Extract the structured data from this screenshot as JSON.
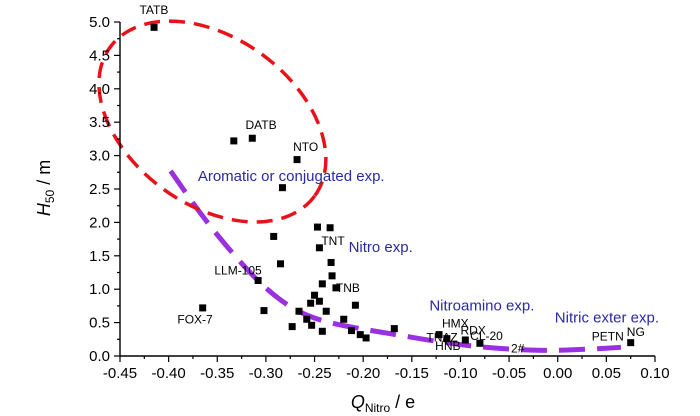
{
  "chart_data": {
    "type": "scatter",
    "xlabel_main": "Q",
    "xlabel_sub": "Nitro",
    "xlabel_unit": " / e",
    "ylabel_main": "H",
    "ylabel_sub": "50",
    "ylabel_unit": " / m",
    "xlim": [
      -0.45,
      0.1
    ],
    "ylim": [
      0.0,
      5.0
    ],
    "x_ticks": [
      "-0.45",
      "-0.40",
      "-0.35",
      "-0.30",
      "-0.25",
      "-0.20",
      "-0.15",
      "-0.10",
      "-0.05",
      "0.00",
      "0.05",
      "0.10"
    ],
    "y_ticks": [
      "0.0",
      "0.5",
      "1.0",
      "1.5",
      "2.0",
      "2.5",
      "3.0",
      "3.5",
      "4.0",
      "4.5",
      "5.0"
    ],
    "points": [
      {
        "x": -0.415,
        "y": 4.92
      },
      {
        "x": -0.333,
        "y": 3.22
      },
      {
        "x": -0.314,
        "y": 3.26
      },
      {
        "x": -0.268,
        "y": 2.94
      },
      {
        "x": -0.283,
        "y": 2.52
      },
      {
        "x": -0.247,
        "y": 1.93
      },
      {
        "x": -0.234,
        "y": 1.92
      },
      {
        "x": -0.292,
        "y": 1.79
      },
      {
        "x": -0.245,
        "y": 1.62
      },
      {
        "x": -0.233,
        "y": 1.4
      },
      {
        "x": -0.285,
        "y": 1.38
      },
      {
        "x": -0.232,
        "y": 1.2
      },
      {
        "x": -0.308,
        "y": 1.13
      },
      {
        "x": -0.242,
        "y": 1.08
      },
      {
        "x": -0.228,
        "y": 1.02
      },
      {
        "x": -0.25,
        "y": 0.91
      },
      {
        "x": -0.245,
        "y": 0.82
      },
      {
        "x": -0.254,
        "y": 0.79
      },
      {
        "x": -0.208,
        "y": 0.76
      },
      {
        "x": -0.365,
        "y": 0.72
      },
      {
        "x": -0.302,
        "y": 0.68
      },
      {
        "x": -0.238,
        "y": 0.67
      },
      {
        "x": -0.266,
        "y": 0.67
      },
      {
        "x": -0.258,
        "y": 0.55
      },
      {
        "x": -0.22,
        "y": 0.55
      },
      {
        "x": -0.253,
        "y": 0.46
      },
      {
        "x": -0.273,
        "y": 0.44
      },
      {
        "x": -0.168,
        "y": 0.41
      },
      {
        "x": -0.212,
        "y": 0.38
      },
      {
        "x": -0.242,
        "y": 0.37
      },
      {
        "x": -0.203,
        "y": 0.32
      },
      {
        "x": -0.197,
        "y": 0.27
      },
      {
        "x": -0.122,
        "y": 0.32
      },
      {
        "x": -0.114,
        "y": 0.26
      },
      {
        "x": -0.095,
        "y": 0.24
      },
      {
        "x": -0.08,
        "y": 0.19
      },
      {
        "x": 0.075,
        "y": 0.2
      }
    ],
    "labels": [
      {
        "text": "TATB",
        "x": -0.43,
        "y": 5.12
      },
      {
        "text": "DATB",
        "x": -0.321,
        "y": 3.4
      },
      {
        "text": "NTO",
        "x": -0.272,
        "y": 3.07
      },
      {
        "text": "TNT",
        "x": -0.243,
        "y": 1.66
      },
      {
        "text": "LLM-105",
        "x": -0.353,
        "y": 1.22
      },
      {
        "text": "TNB",
        "x": -0.228,
        "y": 0.96
      },
      {
        "text": "FOX-7",
        "x": -0.391,
        "y": 0.49
      },
      {
        "text": "HMX",
        "x": -0.119,
        "y": 0.43
      },
      {
        "text": "RDX",
        "x": -0.1,
        "y": 0.32
      },
      {
        "text": "CL-20",
        "x": -0.09,
        "y": 0.24
      },
      {
        "text": "TNAZ",
        "x": -0.135,
        "y": 0.22
      },
      {
        "text": "HNB",
        "x": -0.126,
        "y": 0.09
      },
      {
        "text": "2#",
        "x": -0.048,
        "y": 0.05
      },
      {
        "text": "PETN",
        "x": 0.035,
        "y": 0.23
      },
      {
        "text": "NG",
        "x": 0.071,
        "y": 0.3
      }
    ],
    "annotations": [
      {
        "text": "Aromatic or conjugated exp.",
        "x": -0.37,
        "y": 2.62
      },
      {
        "text": "Nitro exp.",
        "x": -0.215,
        "y": 1.56
      },
      {
        "text": "Nitroamino exp.",
        "x": -0.132,
        "y": 0.68
      },
      {
        "text": "Nitric exter exp.",
        "x": -0.003,
        "y": 0.5
      }
    ],
    "ellipse": {
      "cx": -0.355,
      "cy": 3.51,
      "rx_data": 0.13,
      "ry_data": 1.25,
      "rotation": 36,
      "color": "#e8131a"
    },
    "fit_curve": {
      "color": "#9b30e0",
      "points": [
        [
          -0.398,
          2.77
        ],
        [
          -0.365,
          2.08
        ],
        [
          -0.33,
          1.46
        ],
        [
          -0.3,
          1.0
        ],
        [
          -0.27,
          0.68
        ],
        [
          -0.24,
          0.51
        ],
        [
          -0.2,
          0.4
        ],
        [
          -0.17,
          0.33
        ],
        [
          -0.13,
          0.23
        ],
        [
          -0.09,
          0.15
        ],
        [
          -0.05,
          0.1
        ],
        [
          -0.01,
          0.08
        ],
        [
          0.03,
          0.1
        ],
        [
          0.065,
          0.13
        ]
      ]
    },
    "grid": false,
    "legend": "none"
  }
}
